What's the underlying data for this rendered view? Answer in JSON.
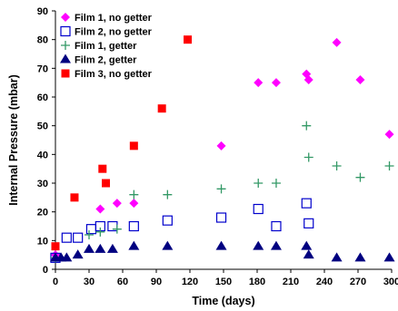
{
  "chart_data": {
    "type": "scatter",
    "title": "",
    "xlabel": "Time (days)",
    "ylabel": "Internal Pressure (mbar)",
    "xlim": [
      0,
      300
    ],
    "ylim": [
      0,
      90
    ],
    "xticks": [
      0,
      30,
      60,
      90,
      120,
      150,
      180,
      210,
      240,
      270,
      300
    ],
    "yticks": [
      0,
      10,
      20,
      30,
      40,
      50,
      60,
      70,
      80,
      90
    ],
    "grid": false,
    "legend_position": "top-left",
    "series": [
      {
        "name": "Film 1, no getter",
        "marker": "diamond",
        "color": "#ff00ff",
        "points": [
          [
            0,
            5
          ],
          [
            40,
            21
          ],
          [
            55,
            23
          ],
          [
            70,
            23
          ],
          [
            148,
            43
          ],
          [
            181,
            65
          ],
          [
            197,
            65
          ],
          [
            224,
            68
          ],
          [
            226,
            66
          ],
          [
            251,
            79
          ],
          [
            272,
            66
          ],
          [
            298,
            47
          ]
        ]
      },
      {
        "name": "Film 2, no getter",
        "marker": "square-open",
        "color": "#0000cc",
        "points": [
          [
            0,
            4
          ],
          [
            10,
            11
          ],
          [
            20,
            11
          ],
          [
            32,
            14
          ],
          [
            40,
            15
          ],
          [
            51,
            15
          ],
          [
            70,
            15
          ],
          [
            100,
            17
          ],
          [
            148,
            18
          ],
          [
            181,
            21
          ],
          [
            197,
            15
          ],
          [
            224,
            23
          ],
          [
            226,
            16
          ]
        ]
      },
      {
        "name": "Film 1, getter",
        "marker": "plus",
        "color": "#339966",
        "points": [
          [
            0,
            4
          ],
          [
            30,
            12
          ],
          [
            40,
            13
          ],
          [
            55,
            14
          ],
          [
            70,
            26
          ],
          [
            100,
            26
          ],
          [
            148,
            28
          ],
          [
            181,
            30
          ],
          [
            197,
            30
          ],
          [
            224,
            50
          ],
          [
            226,
            39
          ],
          [
            251,
            36
          ],
          [
            272,
            32
          ],
          [
            298,
            36
          ]
        ]
      },
      {
        "name": "Film 2, getter",
        "marker": "triangle",
        "color": "#000080",
        "points": [
          [
            0,
            4
          ],
          [
            5,
            4
          ],
          [
            10,
            4
          ],
          [
            20,
            5
          ],
          [
            30,
            7
          ],
          [
            40,
            7
          ],
          [
            51,
            7
          ],
          [
            70,
            8
          ],
          [
            100,
            8
          ],
          [
            148,
            8
          ],
          [
            181,
            8
          ],
          [
            197,
            8
          ],
          [
            224,
            8
          ],
          [
            226,
            5
          ],
          [
            251,
            4
          ],
          [
            272,
            4
          ],
          [
            298,
            4
          ]
        ]
      },
      {
        "name": "Film 3, no getter",
        "marker": "square",
        "color": "#ff0000",
        "points": [
          [
            0,
            8
          ],
          [
            17,
            25
          ],
          [
            42,
            35
          ],
          [
            45,
            30
          ],
          [
            70,
            43
          ],
          [
            95,
            56
          ],
          [
            118,
            80
          ]
        ]
      }
    ]
  }
}
